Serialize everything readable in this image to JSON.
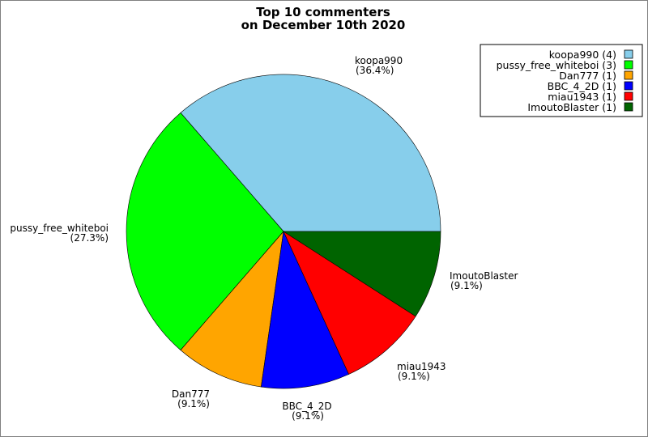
{
  "chart_data": {
    "type": "pie",
    "title_lines": [
      "Top 10 commenters",
      "on December 10th 2020"
    ],
    "slices": [
      {
        "name": "koopa990",
        "count": 4,
        "percent": "36.4%",
        "color": "#87ceeb",
        "legend": "koopa990 (4)"
      },
      {
        "name": "pussy_free_whiteboi",
        "count": 3,
        "percent": "27.3%",
        "color": "#00ff00",
        "legend": "pussy_free_whiteboi (3)"
      },
      {
        "name": "Dan777",
        "count": 1,
        "percent": "9.1%",
        "color": "#ffa500",
        "legend": "Dan777 (1)"
      },
      {
        "name": "BBC_4_2D",
        "count": 1,
        "percent": "9.1%",
        "color": "#0000ff",
        "legend": "BBC_4_2D (1)"
      },
      {
        "name": "miau1943",
        "count": 1,
        "percent": "9.1%",
        "color": "#ff0000",
        "legend": "miau1943 (1)"
      },
      {
        "name": "ImoutoBlaster",
        "count": 1,
        "percent": "9.1%",
        "color": "#006400",
        "legend": "ImoutoBlaster (1)"
      }
    ],
    "start_angle": "0 degrees (3 o'clock), counter-clockwise",
    "legend_placement": "top-right"
  }
}
